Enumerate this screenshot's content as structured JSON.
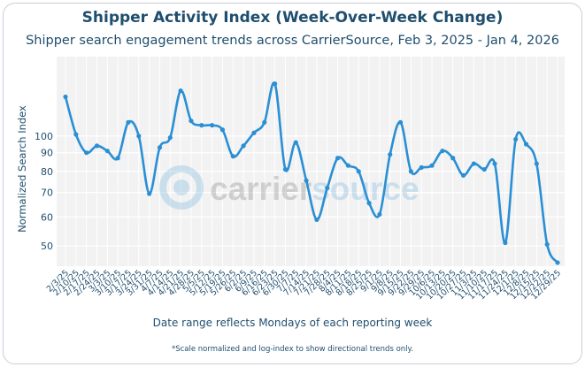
{
  "chart_data": {
    "type": "line",
    "title": "Shipper Activity Index (Week-Over-Week Change)",
    "subtitle": "Shipper search engagement trends across CarrierSource, Feb 3, 2025 - Jan 4, 2026",
    "xlabel": "Date range reflects Mondays of each reporting week",
    "ylabel": "Normalized Search Index",
    "footnote": "*Scale normalized and log-index to show directional trends only.",
    "yscale": "log",
    "ylim": [
      44,
      165
    ],
    "yticks": [
      50,
      60,
      70,
      80,
      90,
      100
    ],
    "grid": true,
    "color": "#2a8fd4",
    "watermark": {
      "prefix": "carrier",
      "suffix": "source"
    },
    "categories": [
      "2/3/25",
      "2/10/25",
      "2/17/25",
      "2/24/25",
      "3/3/25",
      "3/10/25",
      "3/17/25",
      "3/24/25",
      "3/31/25",
      "4/7/25",
      "4/14/25",
      "4/21/25",
      "4/28/25",
      "5/5/25",
      "5/12/25",
      "5/19/25",
      "5/26/25",
      "6/2/25",
      "6/9/25",
      "6/16/25",
      "6/23/25",
      "6/30/25",
      "7/7/25",
      "7/14/25",
      "7/21/25",
      "7/28/25",
      "8/4/25",
      "8/11/25",
      "8/18/25",
      "8/25/25",
      "9/1/25",
      "9/8/25",
      "9/15/25",
      "9/22/25",
      "9/29/25",
      "10/6/25",
      "10/13/25",
      "10/20/25",
      "10/27/25",
      "11/3/25",
      "11/10/25",
      "11/17/25",
      "11/24/25",
      "12/1/25",
      "12/8/25",
      "12/15/25",
      "12/22/25",
      "12/29/25"
    ],
    "values": [
      128,
      101,
      90,
      94,
      91,
      87,
      109,
      100,
      69.5,
      93,
      99,
      133,
      110,
      107,
      107,
      104,
      88,
      94,
      102,
      109,
      139,
      81,
      96,
      75.5,
      59,
      72,
      87,
      83,
      80,
      65.5,
      61,
      89,
      109,
      80,
      82,
      83,
      91,
      87,
      78,
      84,
      81,
      84,
      51,
      98,
      95,
      84,
      50.5,
      45
    ]
  }
}
